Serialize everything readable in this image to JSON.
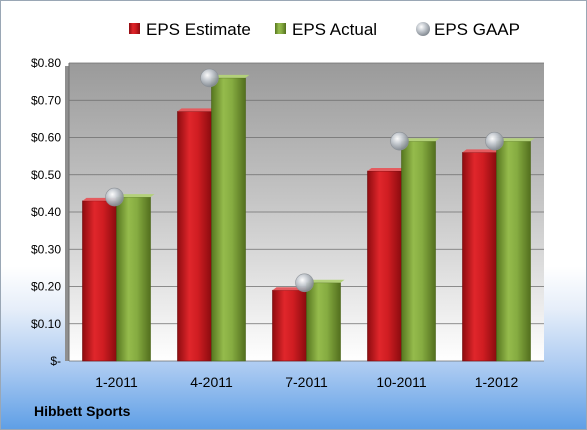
{
  "company": "Hibbett Sports",
  "colors": {
    "estimate": "#c8151b",
    "actual": "#7ea33a",
    "gaap": "#b7bcc3"
  },
  "chart_data": {
    "type": "bar",
    "categories": [
      "1-2011",
      "4-2011",
      "7-2011",
      "10-2011",
      "1-2012"
    ],
    "series": [
      {
        "name": "EPS Estimate",
        "type": "bar",
        "values": [
          0.43,
          0.67,
          0.19,
          0.51,
          0.56
        ]
      },
      {
        "name": "EPS Actual",
        "type": "bar",
        "values": [
          0.44,
          0.76,
          0.21,
          0.59,
          0.59
        ]
      },
      {
        "name": "EPS GAAP",
        "type": "scatter",
        "values": [
          0.44,
          0.76,
          0.21,
          0.59,
          0.59
        ]
      }
    ],
    "y_tick_labels": [
      "$-",
      "$0.10",
      "$0.20",
      "$0.30",
      "$0.40",
      "$0.50",
      "$0.60",
      "$0.70",
      "$0.80"
    ],
    "ylim": [
      0,
      0.8
    ],
    "grid": true,
    "legend_position": "top"
  }
}
